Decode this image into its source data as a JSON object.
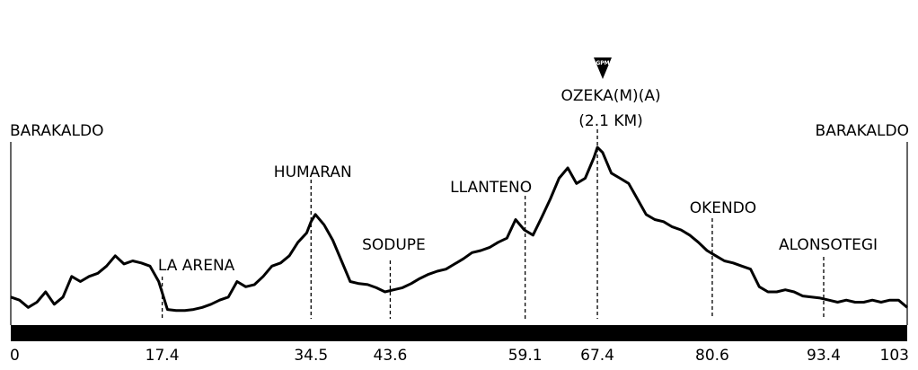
{
  "chart_data": {
    "type": "line",
    "title": "",
    "xlabel": "",
    "ylabel": "",
    "x_unit": "km",
    "xlim": [
      0,
      103
    ],
    "x_ticks": [
      "0",
      "17.4",
      "34.5",
      "43.6",
      "59.1",
      "67.4",
      "80.6",
      "93.4",
      "103"
    ],
    "climb_badge": "GPM",
    "start_label": "BARAKALDO",
    "finish_label": "BARAKALDO",
    "waypoints": [
      {
        "name": "LA ARENA",
        "km": 17.4,
        "tick": "17.4"
      },
      {
        "name": "HUMARAN",
        "km": 34.5,
        "tick": "34.5"
      },
      {
        "name": "SODUPE",
        "km": 43.6,
        "tick": "43.6"
      },
      {
        "name": "LLANTENO",
        "km": 59.1,
        "tick": "59.1"
      },
      {
        "name": "OZEKA(M)(A)",
        "sub": "(2.1 KM)",
        "km": 67.4,
        "tick": "67.4",
        "climb": true
      },
      {
        "name": "OKENDO",
        "km": 80.6,
        "tick": "80.6"
      },
      {
        "name": "ALONSOTEGI",
        "km": 93.4,
        "tick": "93.4"
      }
    ],
    "series": [
      {
        "x": [
          0,
          1,
          2,
          3,
          4,
          5,
          6,
          7,
          8,
          9,
          10,
          11,
          12,
          13,
          14,
          15,
          16,
          17,
          18,
          19,
          20,
          21,
          22,
          23,
          24,
          25,
          26,
          27,
          28,
          29,
          30,
          31,
          32,
          33,
          34,
          34.5,
          35,
          36,
          37,
          38,
          39,
          40,
          41,
          42,
          43,
          44,
          45,
          46,
          47,
          48,
          49,
          50,
          51,
          52,
          53,
          54,
          55,
          56,
          57,
          58,
          59,
          60,
          61,
          62,
          63,
          64,
          65,
          66,
          67,
          67.4,
          68,
          69,
          70,
          71,
          72,
          73,
          74,
          75,
          76,
          77,
          78,
          79,
          80,
          81,
          82,
          83,
          84,
          85,
          86,
          87,
          88,
          89,
          90,
          91,
          92,
          93,
          94,
          95,
          96,
          97,
          98,
          99,
          100,
          101,
          102,
          103
        ],
        "y": [
          0.15,
          0.12,
          0.05,
          0.1,
          0.2,
          0.08,
          0.15,
          0.35,
          0.3,
          0.35,
          0.38,
          0.45,
          0.55,
          0.47,
          0.5,
          0.48,
          0.45,
          0.3,
          0.03,
          0.02,
          0.02,
          0.03,
          0.05,
          0.08,
          0.12,
          0.15,
          0.3,
          0.25,
          0.27,
          0.35,
          0.45,
          0.48,
          0.55,
          0.68,
          0.77,
          0.88,
          0.95,
          0.85,
          0.7,
          0.5,
          0.3,
          0.28,
          0.27,
          0.24,
          0.2,
          0.22,
          0.24,
          0.28,
          0.33,
          0.37,
          0.4,
          0.42,
          0.47,
          0.52,
          0.58,
          0.6,
          0.63,
          0.68,
          0.72,
          0.9,
          0.8,
          0.75,
          0.92,
          1.1,
          1.3,
          1.4,
          1.25,
          1.3,
          1.5,
          1.6,
          1.55,
          1.35,
          1.3,
          1.25,
          1.1,
          0.95,
          0.9,
          0.88,
          0.83,
          0.8,
          0.75,
          0.68,
          0.6,
          0.55,
          0.5,
          0.48,
          0.45,
          0.42,
          0.25,
          0.2,
          0.2,
          0.22,
          0.2,
          0.16,
          0.15,
          0.14,
          0.12,
          0.1,
          0.12,
          0.1,
          0.1,
          0.12,
          0.1,
          0.12,
          0.12,
          0.05
        ]
      }
    ]
  }
}
